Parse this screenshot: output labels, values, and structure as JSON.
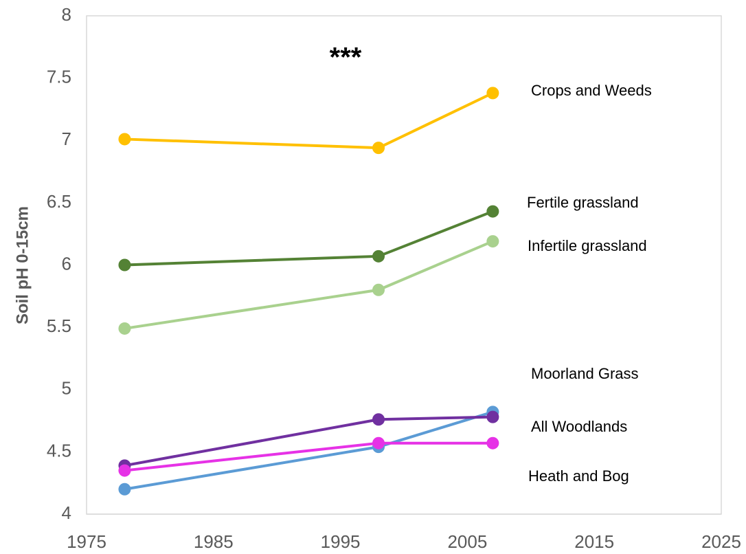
{
  "chart_data": {
    "type": "line",
    "ylabel": "Soil pH  0-15cm",
    "annotations": [
      "***"
    ],
    "x": [
      1978,
      1998,
      2007
    ],
    "series": [
      {
        "name": "Crops and Weeds",
        "color": "#ffc000",
        "values": [
          7.01,
          6.94,
          7.38
        ]
      },
      {
        "name": "Fertile grassland",
        "color": "#548235",
        "values": [
          6.0,
          6.07,
          6.43
        ]
      },
      {
        "name": "Infertile grassland",
        "color": "#a9d18e",
        "values": [
          5.49,
          5.8,
          6.19
        ]
      },
      {
        "name": "Moorland Grass",
        "color": "#5b9bd5",
        "values": [
          4.2,
          4.54,
          4.82
        ]
      },
      {
        "name": "All Woodlands",
        "color": "#7030a0",
        "values": [
          4.39,
          4.76,
          4.78
        ]
      },
      {
        "name": "Heath and Bog",
        "color": "#e632e6",
        "values": [
          4.35,
          4.57,
          4.57
        ]
      }
    ],
    "xlim": [
      1975,
      2025
    ],
    "xticks": [
      1975,
      1985,
      1995,
      2005,
      2015,
      2025
    ],
    "ylim": [
      4,
      8
    ],
    "yticks": [
      4,
      4.5,
      5,
      5.5,
      6,
      6.5,
      7,
      7.5,
      8
    ],
    "grid": false
  }
}
